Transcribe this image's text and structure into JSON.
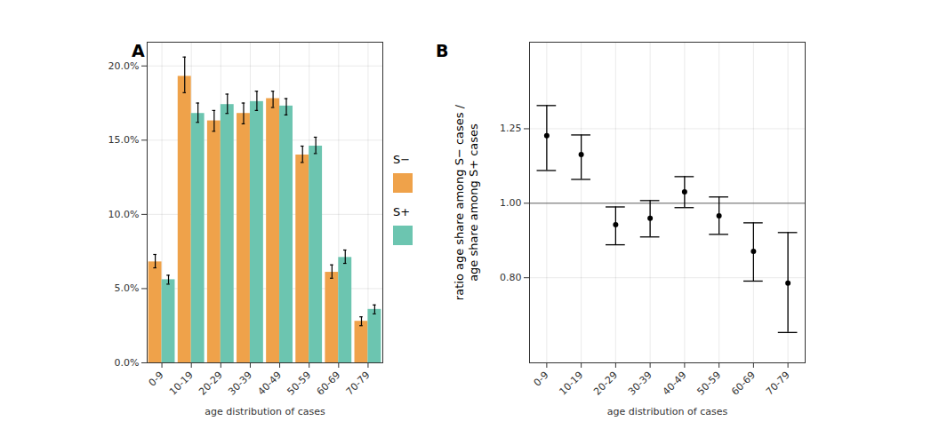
{
  "chart_data": [
    {
      "type": "bar",
      "title": "A",
      "x_label": "age distribution of cases",
      "categories": [
        "0-9",
        "10-19",
        "20-29",
        "30-39",
        "40-49",
        "50-59",
        "60-69",
        "70-79"
      ],
      "series": [
        {
          "name": "S−",
          "color": "#EFA24A",
          "values": [
            6.8,
            19.3,
            16.3,
            16.8,
            17.8,
            14.0,
            6.1,
            2.8
          ],
          "lower": [
            6.4,
            18.2,
            15.6,
            16.1,
            17.2,
            13.5,
            5.7,
            2.5
          ],
          "upper": [
            7.3,
            20.6,
            17.0,
            17.5,
            18.3,
            14.6,
            6.6,
            3.1
          ]
        },
        {
          "name": "S+",
          "color": "#6CC5B0",
          "values": [
            5.6,
            16.8,
            17.4,
            17.6,
            17.3,
            14.6,
            7.1,
            3.6
          ],
          "lower": [
            5.3,
            16.2,
            16.8,
            17.0,
            16.7,
            14.1,
            6.7,
            3.3
          ],
          "upper": [
            5.9,
            17.5,
            18.1,
            18.3,
            17.8,
            15.2,
            7.6,
            3.9
          ]
        }
      ],
      "ylim": [
        0,
        21.6
      ],
      "yticks": [
        {
          "value": 0,
          "label": "0.0%"
        },
        {
          "value": 5,
          "label": "5.0%"
        },
        {
          "value": 10,
          "label": "10.0%"
        },
        {
          "value": 15,
          "label": "15.0%"
        },
        {
          "value": 20,
          "label": "20.0%"
        }
      ],
      "grid": true,
      "legend": "right"
    },
    {
      "type": "scatter",
      "title": "B",
      "x_label": "age distribution of cases",
      "y_label": "ratio age share among S− cases /\nage share among S+ cases",
      "categories": [
        "0-9",
        "10-19",
        "20-29",
        "30-39",
        "40-49",
        "50-59",
        "60-69",
        "70-79"
      ],
      "values": [
        1.224,
        1.157,
        0.938,
        0.956,
        1.035,
        0.963,
        0.866,
        0.787
      ],
      "lower": [
        1.103,
        1.074,
        0.883,
        0.904,
        0.987,
        0.911,
        0.792,
        0.679
      ],
      "upper": [
        1.34,
        1.227,
        0.989,
        1.008,
        1.083,
        1.019,
        0.943,
        0.916
      ],
      "color": "#000000",
      "reference_line": 1,
      "log": "y",
      "ylim": [
        0.62,
        1.62
      ],
      "yticks": [
        {
          "value": 0.8,
          "label": "0.80"
        },
        {
          "value": 1,
          "label": "1.00"
        },
        {
          "value": 1.25,
          "label": "1.25"
        }
      ],
      "grid": true
    }
  ]
}
